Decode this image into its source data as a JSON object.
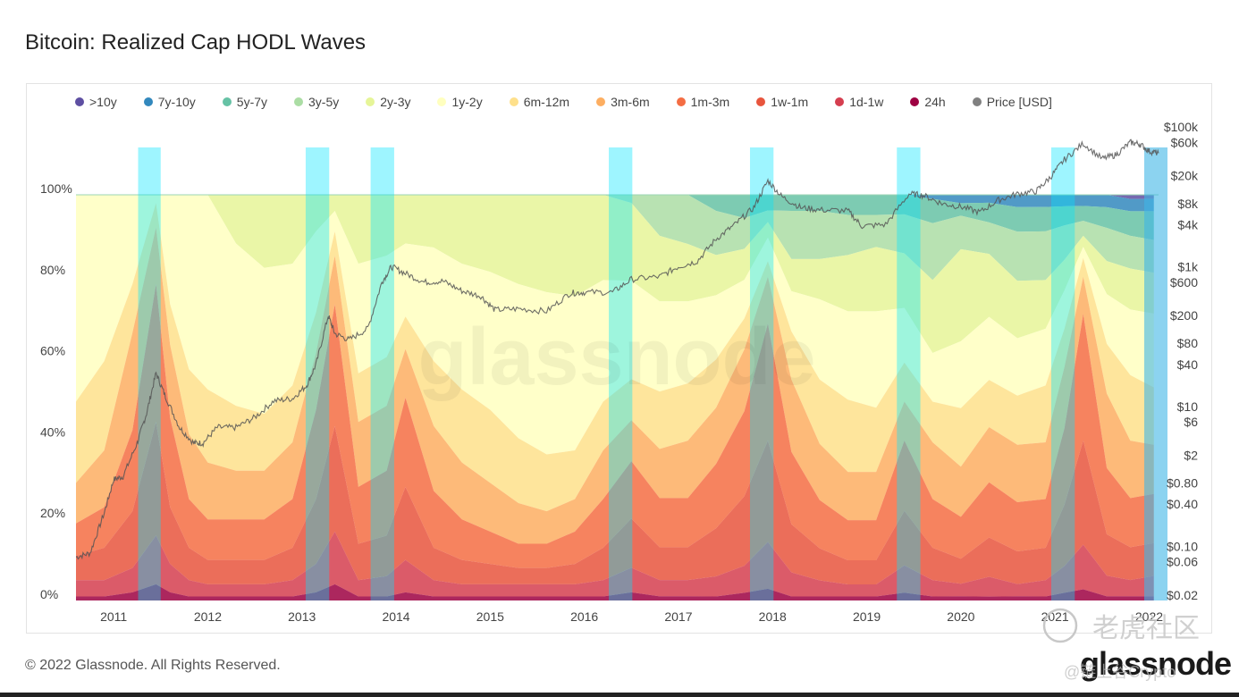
{
  "page": {
    "title": "Bitcoin: Realized Cap HODL Waves",
    "footer": "© 2022 Glassnode. All Rights Reserved.",
    "brand": "glassnode",
    "watermark": "glassnode",
    "corner_watermark": "老虎社区",
    "handle_watermark": "@链上谷Crypto"
  },
  "chart_data": {
    "type": "area",
    "title": "Bitcoin: Realized Cap HODL Waves",
    "stacking": "percent",
    "legend_position": "top",
    "legend": [
      {
        "name": ">10y",
        "color": "#5e4fa2"
      },
      {
        "name": "7y-10y",
        "color": "#3288bd"
      },
      {
        "name": "5y-7y",
        "color": "#66c2a5"
      },
      {
        "name": "3y-5y",
        "color": "#abdda4"
      },
      {
        "name": "2y-3y",
        "color": "#e6f598"
      },
      {
        "name": "1y-2y",
        "color": "#ffffbf"
      },
      {
        "name": "6m-12m",
        "color": "#fee08b"
      },
      {
        "name": "3m-6m",
        "color": "#fdae61"
      },
      {
        "name": "1m-3m",
        "color": "#f46d43"
      },
      {
        "name": "1w-1m",
        "color": "#e8553d"
      },
      {
        "name": "1d-1w",
        "color": "#d53e4f"
      },
      {
        "name": "24h",
        "color": "#9e0142"
      },
      {
        "name": "Price [USD]",
        "color": "#808080"
      }
    ],
    "x_ticks": [
      "2011",
      "2012",
      "2013",
      "2014",
      "2015",
      "2016",
      "2017",
      "2018",
      "2019",
      "2020",
      "2021",
      "2022"
    ],
    "y_left_ticks": [
      "0%",
      "20%",
      "40%",
      "60%",
      "80%",
      "100%"
    ],
    "ylim": [
      0,
      100
    ],
    "y_right_ticks": [
      "$0.02",
      "$0.06",
      "$0.10",
      "$0.40",
      "$0.80",
      "$2",
      "$6",
      "$10",
      "$40",
      "$80",
      "$200",
      "$600",
      "$1k",
      "$4k",
      "$8k",
      "$20k",
      "$60k",
      "$100k"
    ],
    "y_right_scale": "log",
    "x": [
      2010.6,
      2010.9,
      2011.2,
      2011.45,
      2011.6,
      2011.8,
      2012.0,
      2012.3,
      2012.6,
      2012.9,
      2013.15,
      2013.35,
      2013.6,
      2013.9,
      2014.1,
      2014.4,
      2014.7,
      2015.0,
      2015.3,
      2015.6,
      2015.9,
      2016.2,
      2016.5,
      2016.8,
      2017.1,
      2017.4,
      2017.7,
      2017.95,
      2018.2,
      2018.5,
      2018.8,
      2019.1,
      2019.4,
      2019.7,
      2020.0,
      2020.3,
      2020.6,
      2020.9,
      2021.1,
      2021.3,
      2021.55,
      2021.8,
      2022.05
    ],
    "series": [
      {
        "name": "24h",
        "values": [
          1,
          1,
          2,
          4,
          2,
          1,
          1,
          1,
          1,
          1,
          2,
          4,
          1,
          1,
          2,
          1,
          1,
          1,
          1,
          1,
          1,
          1,
          2,
          1,
          1,
          1,
          2,
          3,
          1,
          1,
          1,
          1,
          2,
          1,
          1,
          1,
          1,
          1,
          2,
          3,
          1,
          1,
          1
        ]
      },
      {
        "name": "1d-1w",
        "values": [
          4,
          4,
          6,
          12,
          7,
          4,
          3,
          3,
          3,
          4,
          7,
          13,
          4,
          5,
          8,
          4,
          3,
          3,
          3,
          3,
          3,
          4,
          6,
          4,
          4,
          5,
          7,
          12,
          6,
          4,
          3,
          3,
          7,
          4,
          3,
          5,
          3,
          4,
          7,
          12,
          5,
          4,
          5
        ]
      },
      {
        "name": "1w-1m",
        "values": [
          6,
          8,
          14,
          28,
          14,
          8,
          6,
          6,
          6,
          8,
          16,
          26,
          9,
          10,
          18,
          8,
          6,
          5,
          4,
          4,
          5,
          8,
          12,
          8,
          8,
          12,
          18,
          26,
          12,
          8,
          6,
          6,
          14,
          8,
          6,
          10,
          8,
          8,
          16,
          28,
          10,
          8,
          8
        ]
      },
      {
        "name": "1m-3m",
        "values": [
          8,
          10,
          20,
          34,
          22,
          12,
          10,
          10,
          10,
          12,
          22,
          30,
          14,
          16,
          22,
          14,
          10,
          8,
          6,
          6,
          8,
          12,
          14,
          12,
          12,
          16,
          22,
          30,
          18,
          12,
          10,
          10,
          18,
          12,
          10,
          14,
          12,
          12,
          20,
          34,
          16,
          12,
          12
        ]
      },
      {
        "name": "3m-6m",
        "values": [
          10,
          14,
          24,
          14,
          18,
          16,
          14,
          12,
          12,
          14,
          14,
          12,
          16,
          16,
          12,
          16,
          14,
          12,
          10,
          8,
          8,
          12,
          10,
          12,
          14,
          14,
          16,
          12,
          18,
          14,
          12,
          12,
          10,
          14,
          12,
          14,
          14,
          14,
          16,
          10,
          18,
          14,
          12
        ]
      },
      {
        "name": "6m-12m",
        "values": [
          20,
          22,
          12,
          6,
          10,
          16,
          18,
          16,
          14,
          14,
          10,
          6,
          12,
          12,
          8,
          16,
          18,
          18,
          16,
          14,
          12,
          12,
          10,
          14,
          14,
          12,
          8,
          4,
          12,
          16,
          18,
          16,
          10,
          10,
          14,
          12,
          12,
          14,
          10,
          5,
          12,
          16,
          14
        ]
      },
      {
        "name": "1y-2y",
        "values": [
          51,
          41,
          22,
          2,
          27,
          43,
          48,
          40,
          36,
          30,
          20,
          5,
          27,
          25,
          18,
          28,
          31,
          34,
          38,
          40,
          38,
          30,
          24,
          22,
          20,
          16,
          10,
          6,
          10,
          20,
          22,
          24,
          14,
          12,
          16,
          16,
          14,
          14,
          10,
          3,
          12,
          16,
          18
        ]
      },
      {
        "name": "2y-3y",
        "values": [
          0,
          0,
          0,
          0,
          0,
          0,
          0,
          12,
          18,
          17,
          9,
          4,
          17,
          15,
          12,
          13,
          17,
          19,
          22,
          24,
          25,
          21,
          19,
          16,
          14,
          10,
          8,
          4,
          8,
          10,
          14,
          16,
          14,
          18,
          22,
          16,
          14,
          12,
          8,
          3,
          8,
          10,
          10
        ]
      },
      {
        "name": "3y-5y",
        "values": [
          0,
          0,
          0,
          0,
          0,
          0,
          0,
          0,
          0,
          0,
          0,
          0,
          0,
          0,
          0,
          0,
          0,
          0,
          0,
          0,
          0,
          0,
          2,
          10,
          12,
          11,
          8,
          3,
          12,
          12,
          10,
          8,
          10,
          14,
          8,
          8,
          12,
          12,
          9,
          4,
          8,
          8,
          8
        ]
      },
      {
        "name": "5y-7y",
        "values": [
          0,
          0,
          0,
          0,
          0,
          0,
          0,
          0,
          0,
          0,
          0,
          0,
          0,
          0,
          0,
          0,
          0,
          0,
          0,
          0,
          0,
          0,
          0,
          0,
          0,
          4,
          6,
          4,
          4,
          4,
          5,
          5,
          5,
          6,
          3,
          5,
          6,
          6,
          5,
          4,
          5,
          6,
          7
        ]
      },
      {
        "name": "7y-10y",
        "values": [
          0,
          0,
          0,
          0,
          0,
          0,
          0,
          0,
          0,
          0,
          0,
          0,
          0,
          0,
          0,
          0,
          0,
          0,
          0,
          0,
          0,
          0,
          0,
          0,
          0,
          0,
          0,
          0,
          0,
          0,
          0,
          0,
          0,
          1,
          2,
          2,
          3,
          3,
          3,
          3,
          3,
          3,
          3
        ]
      },
      {
        "name": ">10y",
        "values": [
          0,
          0,
          0,
          0,
          0,
          0,
          0,
          0,
          0,
          0,
          0,
          0,
          0,
          0,
          0,
          0,
          0,
          0,
          0,
          0,
          0,
          0,
          0,
          0,
          0,
          0,
          0,
          0,
          0,
          0,
          0,
          0,
          0,
          0,
          0,
          0,
          0,
          0,
          0,
          0,
          0,
          1,
          1
        ]
      }
    ],
    "price_series": {
      "name": "Price [USD]",
      "x": [
        2010.6,
        2010.75,
        2010.9,
        2011.0,
        2011.1,
        2011.25,
        2011.35,
        2011.45,
        2011.55,
        2011.7,
        2011.85,
        2011.95,
        2012.1,
        2012.3,
        2012.5,
        2012.7,
        2012.9,
        2013.05,
        2013.15,
        2013.28,
        2013.35,
        2013.5,
        2013.7,
        2013.85,
        2013.95,
        2014.1,
        2014.3,
        2014.5,
        2014.7,
        2014.9,
        2015.05,
        2015.3,
        2015.6,
        2015.85,
        2016.0,
        2016.3,
        2016.5,
        2016.8,
        2017.0,
        2017.2,
        2017.4,
        2017.6,
        2017.8,
        2017.95,
        2018.1,
        2018.3,
        2018.5,
        2018.8,
        2018.95,
        2019.2,
        2019.45,
        2019.6,
        2019.8,
        2020.0,
        2020.2,
        2020.4,
        2020.6,
        2020.8,
        2020.95,
        2021.1,
        2021.3,
        2021.5,
        2021.65,
        2021.8,
        2021.9,
        2022.0,
        2022.1
      ],
      "values": [
        0.07,
        0.08,
        0.3,
        0.9,
        1.0,
        3,
        8,
        30,
        14,
        5,
        3,
        3,
        5,
        5,
        7,
        12,
        13,
        20,
        40,
        200,
        110,
        90,
        130,
        600,
        1000,
        800,
        600,
        620,
        450,
        380,
        240,
        250,
        230,
        420,
        430,
        430,
        660,
        720,
        1000,
        1200,
        2500,
        4000,
        7000,
        17000,
        10000,
        7000,
        6500,
        6300,
        3800,
        4000,
        11000,
        10500,
        8000,
        7200,
        6000,
        9000,
        11000,
        12000,
        19000,
        34000,
        58000,
        35000,
        40000,
        60000,
        57000,
        45000,
        42000
      ]
    },
    "highlight_bands": [
      [
        2011.26,
        2011.5
      ],
      [
        2013.04,
        2013.29
      ],
      [
        2013.73,
        2013.98
      ],
      [
        2016.26,
        2016.51
      ],
      [
        2017.76,
        2018.01
      ],
      [
        2019.32,
        2019.57
      ],
      [
        2020.96,
        2021.21
      ]
    ],
    "grid": false
  }
}
